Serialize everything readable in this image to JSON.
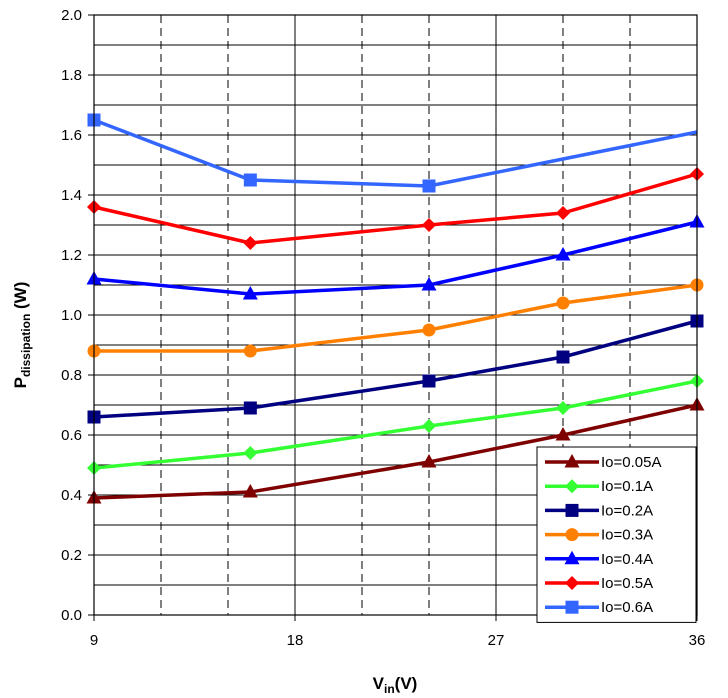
{
  "chart_data": {
    "type": "line",
    "title": "",
    "xlabel": "V",
    "xlabel_sub": "in",
    "xlabel_suffix": "(V)",
    "ylabel": "P",
    "ylabel_sub": "dissipation",
    "ylabel_suffix": " (W)",
    "xlim": [
      9,
      36
    ],
    "ylim": [
      0,
      2.0
    ],
    "xticks": [
      9,
      18,
      27,
      36
    ],
    "xtick_labels": [
      "9",
      "18",
      "27",
      "36"
    ],
    "yticks": [
      0,
      0.2,
      0.4,
      0.6,
      0.8,
      1.0,
      1.2,
      1.4,
      1.6,
      1.8,
      2.0
    ],
    "ytick_labels": [
      "0.0",
      "0.2",
      "0.4",
      "0.6",
      "0.8",
      "1.0",
      "1.2",
      "1.4",
      "1.6",
      "1.8",
      "2.0"
    ],
    "x_minor_gridlines": [
      12,
      15,
      21,
      24,
      30,
      33
    ],
    "grid": true,
    "legend_position": "bottom-right",
    "x": [
      9,
      16,
      24,
      30,
      36
    ],
    "series": [
      {
        "name": "Io=0.05A",
        "color": "#7f0000",
        "marker": "triangle",
        "values": [
          0.39,
          0.41,
          0.51,
          0.6,
          0.7
        ]
      },
      {
        "name": "Io=0.1A",
        "color": "#33ff33",
        "marker": "diamond",
        "values": [
          0.49,
          0.54,
          0.63,
          0.69,
          0.78
        ]
      },
      {
        "name": "Io=0.2A",
        "color": "#000080",
        "marker": "square",
        "values": [
          0.66,
          0.69,
          0.78,
          0.86,
          0.98
        ]
      },
      {
        "name": "Io=0.3A",
        "color": "#ff8000",
        "marker": "circle",
        "values": [
          0.88,
          0.88,
          0.95,
          1.04,
          1.1
        ]
      },
      {
        "name": "Io=0.4A",
        "color": "#0000ff",
        "marker": "triangle",
        "values": [
          1.12,
          1.07,
          1.1,
          1.2,
          1.31
        ]
      },
      {
        "name": "Io=0.5A",
        "color": "#ff0000",
        "marker": "diamond",
        "values": [
          1.36,
          1.24,
          1.3,
          1.34,
          1.47
        ]
      },
      {
        "name": "Io=0.6A",
        "color": "#3366ff",
        "marker": "square",
        "values": [
          1.65,
          1.45,
          1.43,
          null,
          1.61
        ]
      }
    ]
  }
}
